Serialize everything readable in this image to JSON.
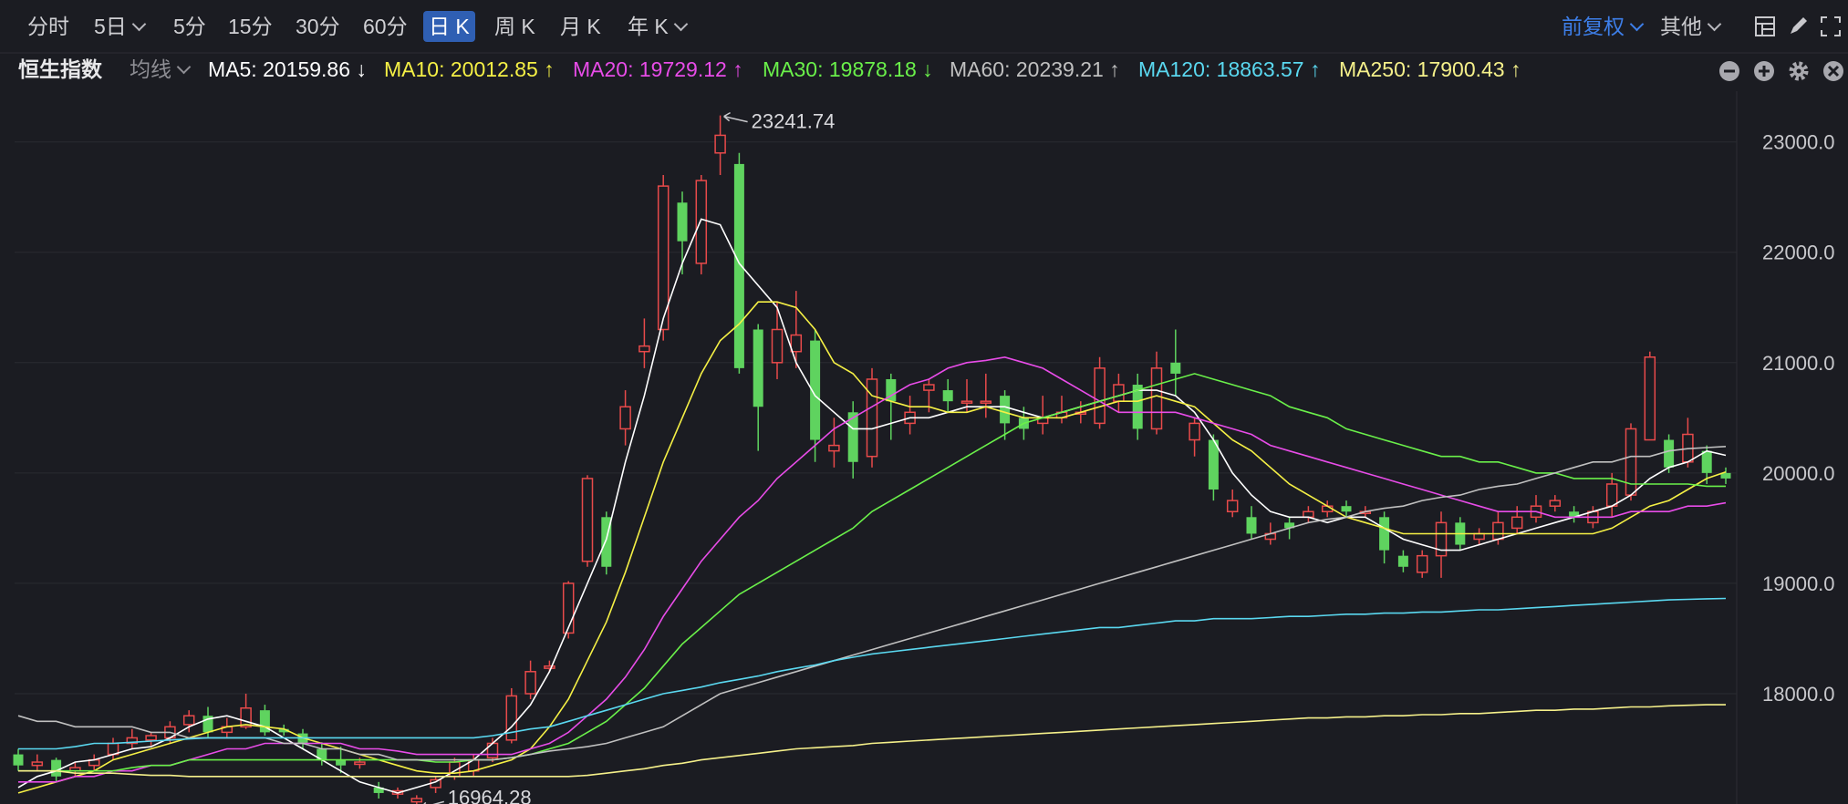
{
  "toolbar": {
    "timeframes": [
      "分时",
      "5日",
      "5分",
      "15分",
      "30分",
      "60分",
      "日 K",
      "周 K",
      "月 K",
      "年 K"
    ],
    "active_timeframe": "日 K",
    "adjust_label": "前复权",
    "other_label": "其他"
  },
  "legend": {
    "index_name": "恒生指数",
    "ma_toggle": "均线",
    "items": [
      {
        "text": "MA5: 20159.86 ↓",
        "color": "#ffffff"
      },
      {
        "text": "MA10: 20012.85 ↑",
        "color": "#f5f045"
      },
      {
        "text": "MA20: 19729.12 ↑",
        "color": "#e84ce8"
      },
      {
        "text": "MA30: 19878.18 ↓",
        "color": "#6af04a"
      },
      {
        "text": "MA60: 20239.21 ↑",
        "color": "#c0c0c0"
      },
      {
        "text": "MA120: 18863.57 ↑",
        "color": "#5ad8f0"
      },
      {
        "text": "MA250: 17900.43 ↑",
        "color": "#f5f08a"
      }
    ]
  },
  "chart_data": {
    "type": "candlestick",
    "y_ticks": [
      "23000.0",
      "22000.0",
      "21000.0",
      "20000.0",
      "19000.0",
      "18000.0"
    ],
    "ylim": [
      17050,
      23460
    ],
    "up_color": "#e84a4a",
    "down_color": "#5fd35f",
    "max_label": "23241.74",
    "min_label": "16964.28",
    "candles": [
      [
        17450,
        17350,
        17500,
        17300
      ],
      [
        17350,
        17380,
        17450,
        17300
      ],
      [
        17400,
        17250,
        17420,
        17200
      ],
      [
        17300,
        17330,
        17380,
        17250
      ],
      [
        17350,
        17400,
        17450,
        17300
      ],
      [
        17450,
        17550,
        17600,
        17400
      ],
      [
        17550,
        17600,
        17680,
        17500
      ],
      [
        17580,
        17620,
        17650,
        17530
      ],
      [
        17600,
        17700,
        17750,
        17550
      ],
      [
        17720,
        17800,
        17850,
        17650
      ],
      [
        17800,
        17650,
        17880,
        17600
      ],
      [
        17650,
        17700,
        17780,
        17600
      ],
      [
        17700,
        17870,
        18000,
        17680
      ],
      [
        17850,
        17650,
        17900,
        17620
      ],
      [
        17680,
        17650,
        17720,
        17620
      ],
      [
        17640,
        17550,
        17680,
        17500
      ],
      [
        17500,
        17400,
        17560,
        17350
      ],
      [
        17400,
        17350,
        17520,
        17280
      ],
      [
        17360,
        17380,
        17420,
        17320
      ],
      [
        17150,
        17100,
        17200,
        17050
      ],
      [
        17090,
        17120,
        17150,
        17050
      ],
      [
        17020,
        17050,
        17080,
        16964
      ],
      [
        17150,
        17220,
        17250,
        17100
      ],
      [
        17250,
        17380,
        17420,
        17220
      ],
      [
        17300,
        17400,
        17450,
        17250
      ],
      [
        17420,
        17550,
        17600,
        17380
      ],
      [
        17580,
        17980,
        18050,
        17550
      ],
      [
        18000,
        18200,
        18300,
        17950
      ],
      [
        18230,
        18250,
        18300,
        18200
      ],
      [
        18550,
        19000,
        19020,
        18500
      ],
      [
        19200,
        19950,
        19980,
        19150
      ],
      [
        19600,
        19150,
        19650,
        19080
      ],
      [
        20400,
        20600,
        20750,
        20250
      ],
      [
        21100,
        21150,
        21400,
        20950
      ],
      [
        21300,
        22600,
        22700,
        21200
      ],
      [
        22450,
        22100,
        22550,
        21800
      ],
      [
        21900,
        22650,
        22700,
        21800
      ],
      [
        22900,
        23060,
        23240,
        22700
      ],
      [
        22800,
        20950,
        22900,
        20900
      ],
      [
        21300,
        20600,
        21350,
        20200
      ],
      [
        21000,
        21300,
        21550,
        20850
      ],
      [
        21100,
        21250,
        21650,
        20950
      ],
      [
        21200,
        20300,
        21300,
        20100
      ],
      [
        20200,
        20250,
        20500,
        20050
      ],
      [
        20550,
        20100,
        20650,
        19950
      ],
      [
        20150,
        20850,
        20950,
        20050
      ],
      [
        20850,
        20650,
        20900,
        20300
      ],
      [
        20450,
        20550,
        20700,
        20350
      ],
      [
        20750,
        20800,
        20850,
        20550
      ],
      [
        20750,
        20650,
        20850,
        20550
      ],
      [
        20650,
        20650,
        20850,
        20550
      ],
      [
        20650,
        20650,
        20900,
        20500
      ],
      [
        20700,
        20450,
        20750,
        20300
      ],
      [
        20500,
        20400,
        20600,
        20300
      ],
      [
        20450,
        20500,
        20700,
        20350
      ],
      [
        20500,
        20550,
        20700,
        20450
      ],
      [
        20550,
        20550,
        20650,
        20450
      ],
      [
        20450,
        20950,
        21050,
        20400
      ],
      [
        20650,
        20800,
        20900,
        20550
      ],
      [
        20800,
        20400,
        20900,
        20300
      ],
      [
        20400,
        20950,
        21100,
        20350
      ],
      [
        21000,
        20900,
        21300,
        20700
      ],
      [
        20300,
        20450,
        20500,
        20150
      ],
      [
        20300,
        19850,
        20350,
        19750
      ],
      [
        19650,
        19750,
        19850,
        19600
      ],
      [
        19600,
        19450,
        19700,
        19400
      ],
      [
        19400,
        19450,
        19550,
        19350
      ],
      [
        19550,
        19500,
        19600,
        19400
      ],
      [
        19600,
        19650,
        19700,
        19550
      ],
      [
        19650,
        19700,
        19750,
        19600
      ],
      [
        19700,
        19650,
        19750,
        19600
      ],
      [
        19650,
        19650,
        19700,
        19600
      ],
      [
        19600,
        19300,
        19650,
        19180
      ],
      [
        19250,
        19150,
        19300,
        19100
      ],
      [
        19100,
        19250,
        19300,
        19050
      ],
      [
        19250,
        19550,
        19650,
        19050
      ],
      [
        19550,
        19350,
        19600,
        19300
      ],
      [
        19400,
        19450,
        19500,
        19350
      ],
      [
        19400,
        19550,
        19650,
        19350
      ],
      [
        19500,
        19600,
        19700,
        19450
      ],
      [
        19600,
        19700,
        19800,
        19550
      ],
      [
        19700,
        19750,
        19800,
        19650
      ],
      [
        19650,
        19600,
        19700,
        19550
      ],
      [
        19550,
        19650,
        19700,
        19500
      ],
      [
        19700,
        19900,
        20000,
        19600
      ],
      [
        19800,
        20400,
        20450,
        19750
      ],
      [
        20300,
        21050,
        21100,
        20300
      ],
      [
        20300,
        20050,
        20350,
        20000
      ],
      [
        20100,
        20350,
        20500,
        20050
      ],
      [
        20200,
        20000,
        20250,
        19900
      ],
      [
        20000,
        19950,
        20050,
        19900
      ]
    ],
    "ma_series": [
      {
        "color": "#ffffff",
        "values": [
          17150,
          17250,
          17300,
          17380,
          17400,
          17450,
          17500,
          17520,
          17600,
          17700,
          17770,
          17800,
          17750,
          17700,
          17600,
          17500,
          17400,
          17300,
          17200,
          17150,
          17100,
          17150,
          17200,
          17300,
          17400,
          17550,
          17700,
          17900,
          18200,
          18600,
          19000,
          19400,
          20100,
          20700,
          21400,
          21900,
          22300,
          22250,
          21900,
          21700,
          21500,
          21000,
          20700,
          20550,
          20400,
          20400,
          20450,
          20500,
          20500,
          20550,
          20600,
          20600,
          20600,
          20550,
          20500,
          20550,
          20600,
          20650,
          20700,
          20750,
          20750,
          20700,
          20550,
          20300,
          20000,
          19800,
          19650,
          19600,
          19600,
          19550,
          19600,
          19600,
          19500,
          19400,
          19350,
          19300,
          19300,
          19350,
          19400,
          19450,
          19500,
          19550,
          19600,
          19650,
          19700,
          19800,
          19950,
          20050,
          20100,
          20200,
          20160
        ]
      },
      {
        "color": "#f5f045",
        "values": [
          17100,
          17150,
          17200,
          17250,
          17300,
          17400,
          17450,
          17500,
          17550,
          17600,
          17650,
          17700,
          17720,
          17700,
          17680,
          17600,
          17550,
          17500,
          17450,
          17400,
          17350,
          17300,
          17280,
          17280,
          17300,
          17350,
          17400,
          17500,
          17700,
          17950,
          18300,
          18650,
          19100,
          19600,
          20100,
          20500,
          20900,
          21200,
          21350,
          21550,
          21550,
          21500,
          21300,
          21000,
          20900,
          20700,
          20650,
          20600,
          20600,
          20550,
          20550,
          20600,
          20550,
          20500,
          20500,
          20500,
          20550,
          20600,
          20650,
          20650,
          20700,
          20650,
          20600,
          20450,
          20300,
          20200,
          20050,
          19900,
          19800,
          19700,
          19600,
          19550,
          19500,
          19450,
          19450,
          19450,
          19450,
          19450,
          19450,
          19450,
          19450,
          19450,
          19450,
          19450,
          19500,
          19600,
          19700,
          19750,
          19850,
          19950,
          20010
        ]
      },
      {
        "color": "#e84ce8",
        "values": [
          17200,
          17200,
          17200,
          17250,
          17250,
          17300,
          17300,
          17350,
          17350,
          17400,
          17450,
          17500,
          17500,
          17550,
          17550,
          17550,
          17550,
          17550,
          17500,
          17500,
          17480,
          17450,
          17450,
          17450,
          17450,
          17450,
          17450,
          17500,
          17550,
          17650,
          17800,
          17950,
          18150,
          18400,
          18700,
          18950,
          19200,
          19400,
          19600,
          19750,
          19950,
          20100,
          20250,
          20400,
          20500,
          20600,
          20700,
          20800,
          20850,
          20950,
          21000,
          21020,
          21050,
          21000,
          20950,
          20850,
          20750,
          20650,
          20550,
          20550,
          20550,
          20550,
          20500,
          20450,
          20400,
          20350,
          20250,
          20200,
          20150,
          20100,
          20050,
          20000,
          19950,
          19900,
          19850,
          19800,
          19750,
          19700,
          19650,
          19650,
          19650,
          19600,
          19600,
          19600,
          19600,
          19650,
          19650,
          19650,
          19700,
          19700,
          19730
        ]
      },
      {
        "color": "#6af04a",
        "values": [
          17300,
          17300,
          17300,
          17300,
          17300,
          17300,
          17330,
          17350,
          17350,
          17400,
          17400,
          17400,
          17400,
          17400,
          17400,
          17400,
          17400,
          17400,
          17400,
          17400,
          17400,
          17400,
          17380,
          17380,
          17400,
          17400,
          17420,
          17450,
          17500,
          17550,
          17650,
          17750,
          17900,
          18050,
          18250,
          18450,
          18600,
          18750,
          18900,
          19000,
          19100,
          19200,
          19300,
          19400,
          19500,
          19650,
          19750,
          19850,
          19950,
          20050,
          20150,
          20250,
          20350,
          20450,
          20500,
          20550,
          20600,
          20650,
          20700,
          20750,
          20800,
          20850,
          20900,
          20850,
          20800,
          20750,
          20700,
          20600,
          20550,
          20500,
          20400,
          20350,
          20300,
          20250,
          20200,
          20150,
          20150,
          20100,
          20100,
          20050,
          20000,
          20000,
          19950,
          19950,
          19950,
          19900,
          19900,
          19900,
          19900,
          19880,
          19880
        ]
      },
      {
        "color": "#c0c0c0",
        "values": [
          17800,
          17750,
          17750,
          17700,
          17700,
          17700,
          17700,
          17650,
          17650,
          17600,
          17600,
          17600,
          17600,
          17600,
          17550,
          17550,
          17500,
          17500,
          17450,
          17450,
          17400,
          17400,
          17400,
          17400,
          17400,
          17400,
          17420,
          17450,
          17480,
          17500,
          17520,
          17550,
          17600,
          17650,
          17700,
          17800,
          17900,
          18000,
          18050,
          18100,
          18150,
          18200,
          18250,
          18300,
          18350,
          18400,
          18450,
          18500,
          18550,
          18600,
          18650,
          18700,
          18750,
          18800,
          18850,
          18900,
          18950,
          19000,
          19050,
          19100,
          19150,
          19200,
          19250,
          19300,
          19350,
          19400,
          19450,
          19500,
          19550,
          19580,
          19600,
          19650,
          19680,
          19700,
          19750,
          19780,
          19800,
          19850,
          19880,
          19900,
          19950,
          20000,
          20050,
          20100,
          20100,
          20150,
          20150,
          20200,
          20220,
          20230,
          20240
        ]
      },
      {
        "color": "#5ad8f0",
        "values": [
          17500,
          17500,
          17500,
          17520,
          17550,
          17550,
          17560,
          17570,
          17580,
          17590,
          17600,
          17600,
          17600,
          17600,
          17600,
          17600,
          17600,
          17600,
          17600,
          17600,
          17600,
          17600,
          17600,
          17600,
          17600,
          17620,
          17650,
          17680,
          17700,
          17750,
          17800,
          17850,
          17900,
          17950,
          18000,
          18030,
          18060,
          18100,
          18130,
          18160,
          18200,
          18230,
          18260,
          18300,
          18330,
          18360,
          18380,
          18400,
          18420,
          18440,
          18460,
          18480,
          18500,
          18520,
          18540,
          18560,
          18580,
          18600,
          18600,
          18620,
          18640,
          18660,
          18660,
          18680,
          18680,
          18680,
          18690,
          18700,
          18700,
          18710,
          18720,
          18720,
          18730,
          18730,
          18740,
          18740,
          18750,
          18760,
          18760,
          18770,
          18780,
          18790,
          18800,
          18810,
          18820,
          18830,
          18840,
          18850,
          18855,
          18860,
          18863
        ]
      },
      {
        "color": "#f5f08a",
        "values": [
          17300,
          17300,
          17300,
          17280,
          17280,
          17280,
          17270,
          17260,
          17260,
          17250,
          17250,
          17250,
          17250,
          17250,
          17250,
          17250,
          17250,
          17250,
          17250,
          17250,
          17250,
          17250,
          17250,
          17250,
          17250,
          17250,
          17250,
          17250,
          17250,
          17250,
          17260,
          17280,
          17300,
          17320,
          17350,
          17370,
          17400,
          17420,
          17440,
          17460,
          17480,
          17500,
          17510,
          17520,
          17530,
          17550,
          17560,
          17570,
          17580,
          17590,
          17600,
          17610,
          17620,
          17630,
          17640,
          17650,
          17660,
          17670,
          17680,
          17690,
          17700,
          17710,
          17720,
          17730,
          17740,
          17750,
          17760,
          17770,
          17780,
          17780,
          17790,
          17790,
          17800,
          17800,
          17810,
          17810,
          17820,
          17820,
          17830,
          17840,
          17850,
          17850,
          17860,
          17860,
          17870,
          17880,
          17880,
          17890,
          17895,
          17900,
          17900
        ]
      }
    ]
  }
}
